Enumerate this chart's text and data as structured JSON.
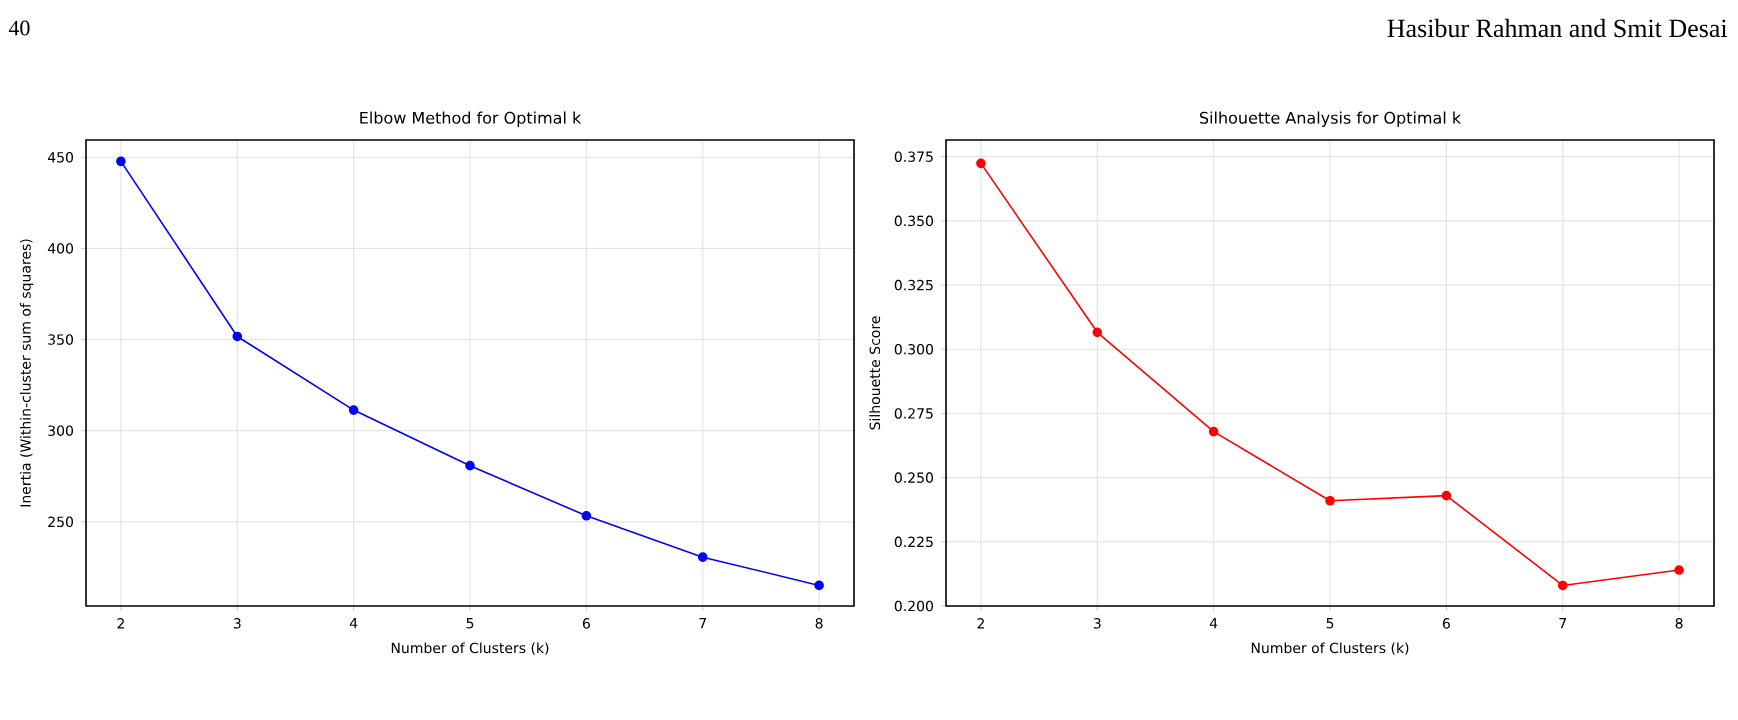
{
  "chart_data": [
    {
      "type": "line",
      "title": "Elbow Method for Optimal k",
      "xlabel": "Number of Clusters (k)",
      "ylabel": "Inertia (Within-cluster sum of squares)",
      "annotations": [
        "40",
        "Hasibur Rahman and Smit Desai"
      ],
      "x": [
        2,
        3,
        4,
        5,
        6,
        7,
        8
      ],
      "values": [
        447.8,
        351.7,
        311.3,
        280.8,
        253.3,
        230.6,
        215.1
      ],
      "color": "#0000ff",
      "xlim": [
        1.7,
        8.3
      ],
      "ylim": [
        203.8,
        459.5
      ],
      "xticks": [
        2,
        3,
        4,
        5,
        6,
        7,
        8
      ],
      "yticks": [
        250,
        300,
        350,
        400,
        450
      ],
      "grid": true,
      "marker": "circle",
      "line_style": "solid"
    },
    {
      "type": "line",
      "title": "Silhouette Analysis for Optimal k",
      "xlabel": "Number of Clusters (k)",
      "ylabel": "Silhouette Score",
      "x": [
        2,
        3,
        4,
        5,
        6,
        7,
        8
      ],
      "values": [
        0.3724,
        0.3066,
        0.2679,
        0.241,
        0.243,
        0.208,
        0.214
      ],
      "color": "#ff0000",
      "xlim": [
        1.7,
        8.3
      ],
      "ylim": [
        0.2,
        0.3815
      ],
      "xticks": [
        2,
        3,
        4,
        5,
        6,
        7,
        8
      ],
      "yticks": [
        {
          "value": 0.2,
          "label": "0.200"
        },
        0.225,
        {
          "value": 0.25,
          "label": "0.250"
        },
        0.275,
        {
          "value": 0.3,
          "label": "0.300"
        },
        0.325,
        {
          "value": 0.35,
          "label": "0.350"
        },
        0.375
      ],
      "grid": true,
      "marker": "circle",
      "line_style": "solid"
    }
  ]
}
